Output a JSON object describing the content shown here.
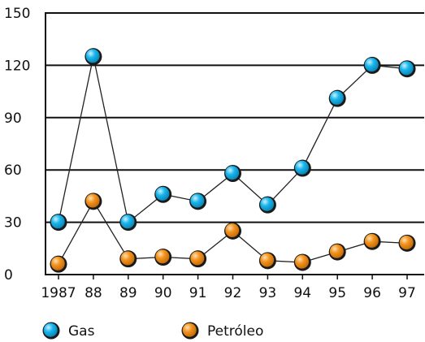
{
  "colors": {
    "gas": "#19b6ec",
    "petroleo": "#f3931f",
    "axis": "#111111",
    "connector": "#222222"
  },
  "chart_data": {
    "type": "line",
    "categories": [
      "1987",
      "88",
      "89",
      "90",
      "91",
      "92",
      "93",
      "94",
      "95",
      "96",
      "97"
    ],
    "series": [
      {
        "key": "gas",
        "name": "Gas",
        "values": [
          30,
          125,
          30,
          46,
          42,
          58,
          40,
          61,
          101,
          120,
          118
        ]
      },
      {
        "key": "petroleo",
        "name": "Petróleo",
        "values": [
          6,
          42,
          9,
          10,
          9,
          25,
          8,
          7,
          13,
          19,
          18
        ]
      }
    ],
    "yticks": [
      "0",
      "30",
      "60",
      "90",
      "120",
      "150"
    ],
    "ylim": [
      0,
      150
    ],
    "grid": true,
    "legend": "bottom-left"
  }
}
